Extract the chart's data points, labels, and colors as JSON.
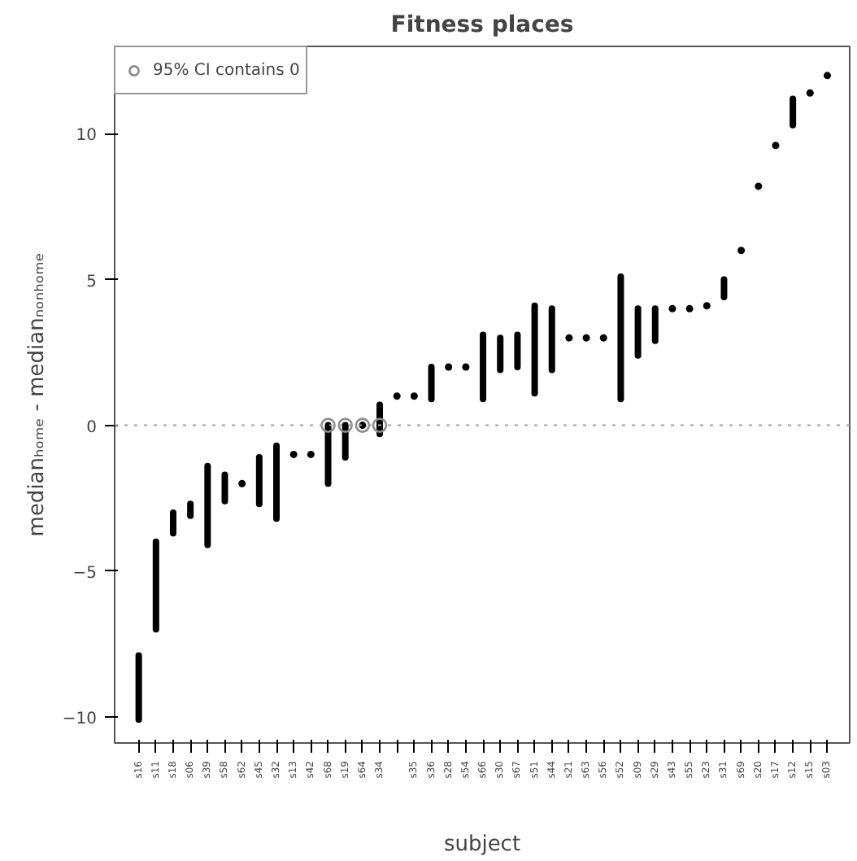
{
  "chart_data": {
    "type": "bar",
    "title": "Fitness places",
    "xlabel": "subject",
    "ylabel": "medianₕₒₘₑ - medianₙₒₙₕₒₘₑ",
    "categories": [
      "s16",
      "s11",
      "s18",
      "s06",
      "s39",
      "s58",
      "s62",
      "s45",
      "s32",
      "s13",
      "s42",
      "s68",
      "s19",
      "s64",
      "s34",
      null,
      "s35",
      "s36",
      "s28",
      "s54",
      "s66",
      "s30",
      "s67",
      "s51",
      "s44",
      "s21",
      "s63",
      "s56",
      "s52",
      "s09",
      "s29",
      "s43",
      "s55",
      "s23",
      "s31",
      "s69",
      "s20",
      "s17",
      "s12",
      "s15",
      "s03"
    ],
    "series": [
      {
        "color": "#000000",
        "base": [
          -10.1,
          -7.0,
          -3.7,
          -3.1,
          -4.1,
          -2.6,
          null,
          -2.7,
          -3.2,
          null,
          null,
          -2.0,
          -1.1,
          null,
          -0.3,
          null,
          null,
          0.9,
          null,
          null,
          0.9,
          1.9,
          2.0,
          1.1,
          1.9,
          null,
          null,
          null,
          0.9,
          2.4,
          2.9,
          null,
          null,
          null,
          4.4,
          null,
          null,
          null,
          10.3,
          null,
          null
        ],
        "values": [
          2.2,
          3.0,
          0.7,
          0.4,
          2.7,
          0.9,
          null,
          1.6,
          2.5,
          null,
          null,
          2.0,
          1.1,
          null,
          1.0,
          null,
          null,
          1.1,
          null,
          null,
          2.2,
          1.1,
          1.1,
          3.0,
          2.1,
          null,
          null,
          null,
          4.2,
          1.6,
          1.1,
          null,
          null,
          null,
          0.6,
          null,
          null,
          null,
          0.9,
          null,
          null
        ]
      },
      {
        "type": "scatter",
        "color": "#000000",
        "marker": "circle",
        "values": [
          null,
          null,
          null,
          null,
          null,
          null,
          -2.0,
          null,
          null,
          -1.0,
          -1.0,
          null,
          null,
          0,
          null,
          1.0,
          1.0,
          null,
          2.0,
          2.0,
          null,
          null,
          null,
          null,
          null,
          3.0,
          3.0,
          3.0,
          null,
          null,
          null,
          4.0,
          4.0,
          4.1,
          null,
          6.0,
          8.2,
          9.6,
          null,
          11.4,
          12.0
        ]
      },
      {
        "type": "scatter",
        "name": "95% CI contains 0",
        "color": "#8c8c8c",
        "marker": "circle",
        "x": [
          "s68",
          "s19",
          "s64",
          "s34"
        ],
        "values": [
          0,
          0,
          0,
          0
        ]
      }
    ],
    "ylim": [
      -10.9,
      13
    ],
    "yticks": [
      -10,
      -5,
      0,
      5,
      10
    ],
    "grid": false,
    "legend": "top left",
    "ref_lines": [
      {
        "axis": "y",
        "value": 0,
        "color": "#a0a0a0",
        "line_style": "dotted"
      }
    ]
  }
}
